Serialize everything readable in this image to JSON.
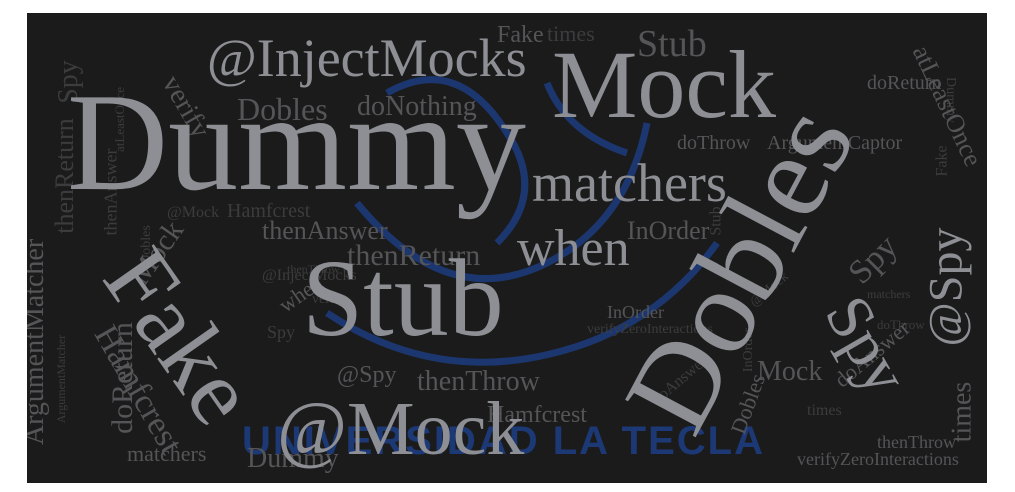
{
  "watermark": {
    "text": "UNIVERSIDAD LA TECLA",
    "color": "#1d3f86"
  },
  "colors": {
    "background": "#1b1b1b",
    "primary_word": "#8d8f94",
    "secondary_word": "#555558",
    "tertiary_word": "#3c3c3e"
  },
  "words": {
    "dummy": "Dummy",
    "mock_main": "Mock",
    "dobles_main": "Dobles",
    "stub_main": "Stub",
    "fake_main": "Fake",
    "at_mock_main": "@Mock",
    "spy_main": "Spy",
    "inject_mocks_main": "@InjectMocks",
    "when_main": "when",
    "matchers_main": "matchers",
    "at_spy_main": "@Spy",
    "stub_top": "Stub",
    "dobles_small": "Dobles",
    "do_nothing": "doNothing",
    "then_return_main": "thenReturn",
    "then_answer_main": "thenAnswer",
    "hamfcrest_main": "Hamfcrest",
    "do_return_main": "doReturn",
    "argument_matcher_main": "ArgumentMatcher",
    "then_throw_main": "thenThrow",
    "verify_zero_main": "verifyZeroInteractions",
    "times_main": "times",
    "in_order_main": "InOrder",
    "verify_main": "verify",
    "mock_left": "Mock",
    "fake_top": "Fake",
    "at_least_once_main": "atLeastOnce",
    "do_answer_main": "doAnswer",
    "spy_small_top": "Spy",
    "matchers_bottom": "matchers",
    "dummy_bottom": "Dummy",
    "dobles_right": "Dobles",
    "then_throw_bottom": "thenThrow",
    "spy_right": "Spy",
    "do_throw": "doThrow",
    "argument_captor": "ArgumentCaptor",
    "hamfcrest_bottom": "Hamfcrest",
    "in_order_mid": "InOrder",
    "when_small": "when",
    "at_mock_small": "@Mock",
    "at_inject_mocks_small": "@InjectMocks",
    "times_top": "times",
    "do_return_right": "doReturn",
    "mock_bottom_right": "Mock",
    "at_spy_bottom": "@Spy",
    "then_answer_small": "thenAnswer",
    "at_least_once_small": "atLeastOnce",
    "then_return_small": "thenReturn",
    "verify_zero_small": "verifyZeroInteractions",
    "dobles_tiny": "Dobles",
    "hamfcrest_small": "Hamfcrest",
    "in_order_small": "InOrder",
    "at_mock_tiny": "@Mock",
    "do_answer_small": "doAnswer",
    "dummy_right": "Dummy",
    "times_right": "times",
    "stub_small": "Stub",
    "fake_small": "Fake",
    "spy_small": "Spy",
    "matchers_tiny": "matchers",
    "verify_small": "verify",
    "do_throw_right": "doThrow",
    "argument_matcher_small": "ArgumentMatcher",
    "then_throw_small": "thenThrow"
  }
}
